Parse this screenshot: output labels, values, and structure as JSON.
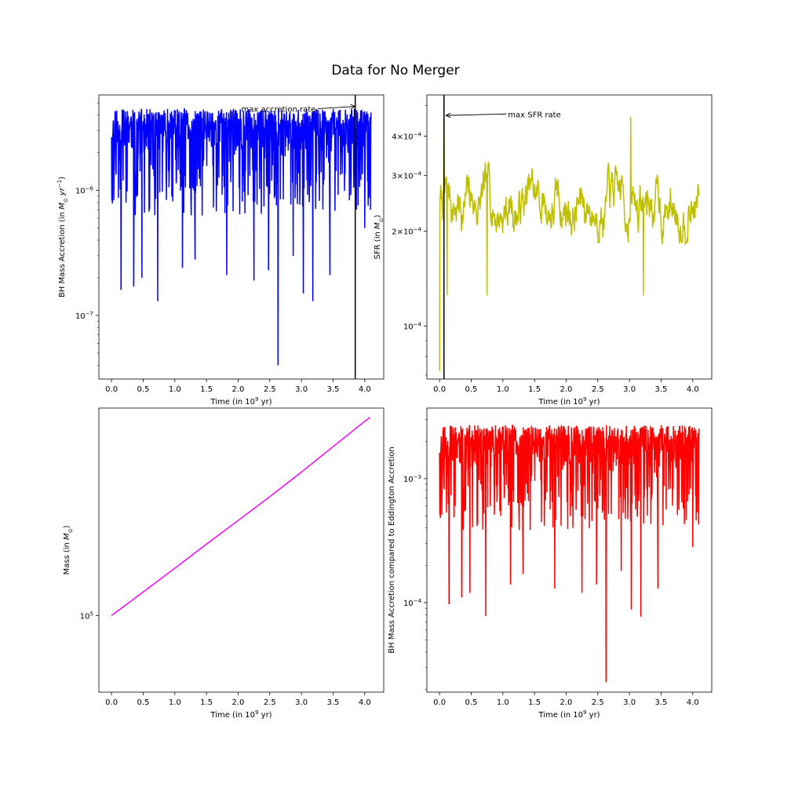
{
  "figure": {
    "title": "Data for No Merger"
  },
  "chart_data": [
    {
      "id": "bh_acc",
      "type": "line",
      "color": "#0000ff",
      "xlabel": "Time (in 10^9 yr)",
      "ylabel": "BH Mass Accretion (in M⊙ yr⁻¹)",
      "xlim": [
        -0.2,
        4.3
      ],
      "xticks": [
        0.0,
        0.5,
        1.0,
        1.5,
        2.0,
        2.5,
        3.0,
        3.5,
        4.0
      ],
      "xtick_labels": [
        "0.0",
        "0.5",
        "1.0",
        "1.5",
        "2.0",
        "2.5",
        "3.0",
        "3.5",
        "4.0"
      ],
      "yscale": "log",
      "ylim": [
        3.1e-08,
        5.8e-06
      ],
      "yticks": [
        1e-07,
        1e-06
      ],
      "ytick_labels": [
        "10⁻⁷",
        "10⁻⁶"
      ],
      "x_range": [
        0.0,
        4.1
      ],
      "typical_range": [
        1.8e-06,
        4.5e-06
      ],
      "dips": [
        {
          "x": 0.15,
          "y": 1.6e-07
        },
        {
          "x": 0.35,
          "y": 1.7e-07
        },
        {
          "x": 0.48,
          "y": 2e-07
        },
        {
          "x": 0.73,
          "y": 1.3e-07
        },
        {
          "x": 1.12,
          "y": 2.4e-07
        },
        {
          "x": 1.32,
          "y": 2.8e-07
        },
        {
          "x": 1.82,
          "y": 2.1e-07
        },
        {
          "x": 2.25,
          "y": 1.9e-07
        },
        {
          "x": 2.48,
          "y": 2.3e-07
        },
        {
          "x": 2.63,
          "y": 4e-08
        },
        {
          "x": 2.87,
          "y": 3e-07
        },
        {
          "x": 3.03,
          "y": 1.5e-07
        },
        {
          "x": 3.18,
          "y": 1.3e-07
        },
        {
          "x": 3.45,
          "y": 2.1e-07
        },
        {
          "x": 4.0,
          "y": 5e-07
        }
      ],
      "vline_x": 3.85,
      "annotation": {
        "text": "max accretion rate",
        "text_x": 2.05,
        "text_y": 4.5e-06,
        "target_x": 3.85,
        "target_y": 4.7e-06
      }
    },
    {
      "id": "sfr",
      "type": "line",
      "color": "#bfbf00",
      "xlabel": "Time (in 10^9 yr)",
      "ylabel": "SFR (in M⊙)",
      "xlim": [
        -0.2,
        4.3
      ],
      "xticks": [
        0.0,
        0.5,
        1.0,
        1.5,
        2.0,
        2.5,
        3.0,
        3.5,
        4.0
      ],
      "xtick_labels": [
        "0.0",
        "0.5",
        "1.0",
        "1.5",
        "2.0",
        "2.5",
        "3.0",
        "3.5",
        "4.0"
      ],
      "yscale": "log",
      "ylim": [
        6.8e-05,
        0.00054
      ],
      "yticks": [
        0.0001,
        0.0002,
        0.0003,
        0.0004
      ],
      "ytick_labels": [
        "10⁻⁴",
        "2×10⁻⁴",
        "3×10⁻⁴",
        "4×10⁻⁴"
      ],
      "x_range": [
        0.0,
        4.1
      ],
      "typical_range": [
        0.00018,
        0.00033
      ],
      "features": [
        {
          "x": 0.0,
          "y": 7.2e-05
        },
        {
          "x": 0.07,
          "y": 0.00047
        },
        {
          "x": 0.12,
          "y": 0.000125
        },
        {
          "x": 0.75,
          "y": 0.000125
        },
        {
          "x": 3.02,
          "y": 0.00046
        },
        {
          "x": 3.22,
          "y": 0.000125
        }
      ],
      "vline_x": 0.07,
      "annotation": {
        "text": "max SFR rate",
        "text_x": 1.08,
        "text_y": 0.00047,
        "target_x": 0.1,
        "target_y": 0.000465
      }
    },
    {
      "id": "mass",
      "type": "line",
      "color": "#ff00ff",
      "xlabel": "Time (in 10^9 yr)",
      "ylabel": "Mass (in M⊙)",
      "xlim": [
        -0.2,
        4.3
      ],
      "xticks": [
        0.0,
        0.5,
        1.0,
        1.5,
        2.0,
        2.5,
        3.0,
        3.5,
        4.0
      ],
      "xtick_labels": [
        "0.0",
        "0.5",
        "1.0",
        "1.5",
        "2.0",
        "2.5",
        "3.0",
        "3.5",
        "4.0"
      ],
      "yscale": "log",
      "ylim": [
        97000,
        108600
      ],
      "yticks": [
        100000
      ],
      "ytick_labels": [
        "10⁵"
      ],
      "x": [
        0.0,
        0.5,
        1.0,
        1.5,
        2.0,
        2.5,
        3.0,
        3.5,
        4.08
      ],
      "y": [
        100000,
        100940,
        101900,
        102880,
        103850,
        104840,
        105870,
        106950,
        108200
      ]
    },
    {
      "id": "eddington",
      "type": "line",
      "color": "#ff0000",
      "xlabel": "Time (in 10^9 yr)",
      "ylabel": "BH Mass Accretion compared to Eddington Accretion",
      "xlim": [
        -0.2,
        4.3
      ],
      "xticks": [
        0.0,
        0.5,
        1.0,
        1.5,
        2.0,
        2.5,
        3.0,
        3.5,
        4.0
      ],
      "xtick_labels": [
        "0.0",
        "0.5",
        "1.0",
        "1.5",
        "2.0",
        "2.5",
        "3.0",
        "3.5",
        "4.0"
      ],
      "yscale": "log",
      "ylim": [
        1.9e-05,
        0.0037
      ],
      "yticks": [
        0.0001,
        0.001
      ],
      "ytick_labels": [
        "10⁻⁴",
        "10⁻³"
      ],
      "x_range": [
        0.0,
        4.1
      ],
      "typical_range": [
        0.0011,
        0.0027
      ],
      "dips": [
        {
          "x": 0.15,
          "y": 9.7e-05
        },
        {
          "x": 0.35,
          "y": 0.00011
        },
        {
          "x": 0.48,
          "y": 0.00012
        },
        {
          "x": 0.73,
          "y": 7.8e-05
        },
        {
          "x": 1.12,
          "y": 0.00014
        },
        {
          "x": 1.32,
          "y": 0.00017
        },
        {
          "x": 1.82,
          "y": 0.00013
        },
        {
          "x": 2.25,
          "y": 0.00012
        },
        {
          "x": 2.48,
          "y": 0.00014
        },
        {
          "x": 2.63,
          "y": 2.3e-05
        },
        {
          "x": 2.87,
          "y": 0.00018
        },
        {
          "x": 3.03,
          "y": 8.8e-05
        },
        {
          "x": 3.18,
          "y": 7.7e-05
        },
        {
          "x": 3.45,
          "y": 0.00013
        },
        {
          "x": 4.0,
          "y": 0.00028
        }
      ]
    }
  ]
}
